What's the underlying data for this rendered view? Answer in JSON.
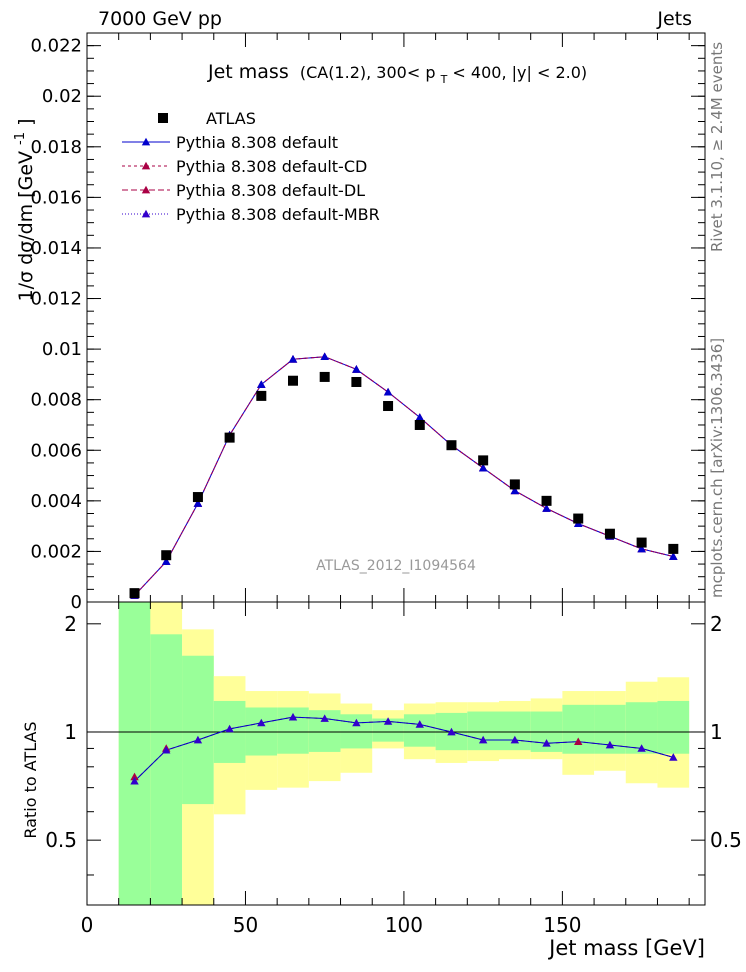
{
  "header": {
    "left": "7000 GeV pp",
    "right": "Jets"
  },
  "side_labels": {
    "top": "Rivet 3.1.10,  ≥ 2.4M events",
    "bottom": "mcplots.cern.ch [arXiv:1306.3436]"
  },
  "chart_data": {
    "type": "line",
    "title_main": "Jet mass",
    "title_detail": "(CA(1.2), 300< p",
    "title_sub": "T",
    "title_tail": " < 400, |y| < 2.0)",
    "watermark": "ATLAS_2012_I1094564",
    "ylabel_main": "1/σ dσ/dm [GeV",
    "ylabel_sup": "-1",
    "ylabel_close": "]",
    "xlabel": "Jet mass [GeV]",
    "ratio_ylabel": "Ratio to ATLAS",
    "x": [
      15,
      25,
      35,
      45,
      55,
      65,
      75,
      85,
      95,
      105,
      115,
      125,
      135,
      145,
      155,
      165,
      175,
      185
    ],
    "xlim": [
      0,
      195
    ],
    "ylim": [
      0,
      0.0225
    ],
    "ratio_ylim": [
      0.33,
      2.3
    ],
    "x_ticks": [
      "0",
      "50",
      "100",
      "150"
    ],
    "y_ticks": [
      "0",
      "0.002",
      "0.004",
      "0.006",
      "0.008",
      "0.01",
      "0.012",
      "0.014",
      "0.016",
      "0.018",
      "0.02",
      "0.022"
    ],
    "ratio_ticks": [
      "0.5",
      "1",
      "2"
    ],
    "data_series": {
      "name": "ATLAS",
      "values": [
        0.00035,
        0.00185,
        0.00415,
        0.0065,
        0.00815,
        0.00875,
        0.0089,
        0.0087,
        0.00775,
        0.007,
        0.0062,
        0.0056,
        0.00465,
        0.004,
        0.0033,
        0.0027,
        0.00235,
        0.0021
      ]
    },
    "series": [
      {
        "name": "Pythia 8.308 default",
        "color": "#0000cc",
        "dash": "",
        "values": [
          0.00026,
          0.0016,
          0.0039,
          0.0066,
          0.0086,
          0.0096,
          0.0097,
          0.0092,
          0.0083,
          0.0073,
          0.0062,
          0.0053,
          0.0044,
          0.0037,
          0.0031,
          0.0026,
          0.0021,
          0.0018
        ]
      },
      {
        "name": "Pythia 8.308 default-CD",
        "color": "#aa0044",
        "dash": "3,3",
        "values": [
          0.00026,
          0.0016,
          0.0039,
          0.0066,
          0.0086,
          0.0096,
          0.0097,
          0.0092,
          0.0083,
          0.0073,
          0.0062,
          0.0053,
          0.0044,
          0.0037,
          0.0031,
          0.0026,
          0.0021,
          0.0018
        ]
      },
      {
        "name": "Pythia 8.308 default-DL",
        "color": "#aa0044",
        "dash": "6,3",
        "values": [
          0.00026,
          0.0016,
          0.0039,
          0.0066,
          0.0086,
          0.0096,
          0.0097,
          0.0092,
          0.0083,
          0.0073,
          0.0062,
          0.0053,
          0.0044,
          0.0037,
          0.0031,
          0.0026,
          0.0021,
          0.0018
        ]
      },
      {
        "name": "Pythia 8.308 default-MBR",
        "color": "#3300cc",
        "dash": "1,2",
        "values": [
          0.00026,
          0.0016,
          0.0039,
          0.0066,
          0.0086,
          0.0096,
          0.0097,
          0.0092,
          0.0083,
          0.0073,
          0.0062,
          0.0053,
          0.0044,
          0.0037,
          0.0031,
          0.0026,
          0.0021,
          0.0018
        ]
      }
    ],
    "ratio_series": {
      "default": [
        0.73,
        0.89,
        0.95,
        1.02,
        1.06,
        1.1,
        1.09,
        1.06,
        1.07,
        1.05,
        1.0,
        0.95,
        0.95,
        0.93,
        0.94,
        0.92,
        0.9,
        0.85
      ],
      "cd_dl_first": [
        0.75,
        0.9
      ],
      "cd_dl_155": 0.94
    },
    "bands": [
      {
        "x0": 10,
        "x1": 20,
        "g_lo": 0.33,
        "g_hi": 2.3,
        "y_lo": 0.33,
        "y_hi": 2.3
      },
      {
        "x0": 20,
        "x1": 30,
        "g_lo": 0.33,
        "g_hi": 1.87,
        "y_lo": 0.33,
        "y_hi": 2.3
      },
      {
        "x0": 30,
        "x1": 40,
        "g_lo": 0.63,
        "g_hi": 1.63,
        "y_lo": 0.33,
        "y_hi": 1.93
      },
      {
        "x0": 40,
        "x1": 50,
        "g_lo": 0.82,
        "g_hi": 1.22,
        "y_lo": 0.59,
        "y_hi": 1.43
      },
      {
        "x0": 50,
        "x1": 60,
        "g_lo": 0.86,
        "g_hi": 1.17,
        "y_lo": 0.69,
        "y_hi": 1.3
      },
      {
        "x0": 60,
        "x1": 70,
        "g_lo": 0.87,
        "g_hi": 1.17,
        "y_lo": 0.7,
        "y_hi": 1.3
      },
      {
        "x0": 70,
        "x1": 80,
        "g_lo": 0.88,
        "g_hi": 1.15,
        "y_lo": 0.73,
        "y_hi": 1.28
      },
      {
        "x0": 80,
        "x1": 90,
        "g_lo": 0.9,
        "g_hi": 1.12,
        "y_lo": 0.77,
        "y_hi": 1.2
      },
      {
        "x0": 90,
        "x1": 100,
        "g_lo": 0.94,
        "g_hi": 1.09,
        "y_lo": 0.9,
        "y_hi": 1.15
      },
      {
        "x0": 100,
        "x1": 110,
        "g_lo": 0.91,
        "g_hi": 1.12,
        "y_lo": 0.84,
        "y_hi": 1.2
      },
      {
        "x0": 110,
        "x1": 120,
        "g_lo": 0.89,
        "g_hi": 1.13,
        "y_lo": 0.82,
        "y_hi": 1.21
      },
      {
        "x0": 120,
        "x1": 130,
        "g_lo": 0.89,
        "g_hi": 1.14,
        "y_lo": 0.83,
        "y_hi": 1.21
      },
      {
        "x0": 130,
        "x1": 140,
        "g_lo": 0.89,
        "g_hi": 1.14,
        "y_lo": 0.84,
        "y_hi": 1.22
      },
      {
        "x0": 140,
        "x1": 150,
        "g_lo": 0.88,
        "g_hi": 1.14,
        "y_lo": 0.84,
        "y_hi": 1.24
      },
      {
        "x0": 150,
        "x1": 160,
        "g_lo": 0.87,
        "g_hi": 1.19,
        "y_lo": 0.76,
        "y_hi": 1.3
      },
      {
        "x0": 160,
        "x1": 170,
        "g_lo": 0.87,
        "g_hi": 1.19,
        "y_lo": 0.78,
        "y_hi": 1.3
      },
      {
        "x0": 170,
        "x1": 180,
        "g_lo": 0.87,
        "g_hi": 1.21,
        "y_lo": 0.72,
        "y_hi": 1.38
      },
      {
        "x0": 180,
        "x1": 190,
        "g_lo": 0.87,
        "g_hi": 1.22,
        "y_lo": 0.7,
        "y_hi": 1.42
      }
    ],
    "grid": false,
    "legend_position": "top-left",
    "colors": {
      "band_inner": "#99ff99",
      "band_outer": "#ffff99"
    }
  }
}
